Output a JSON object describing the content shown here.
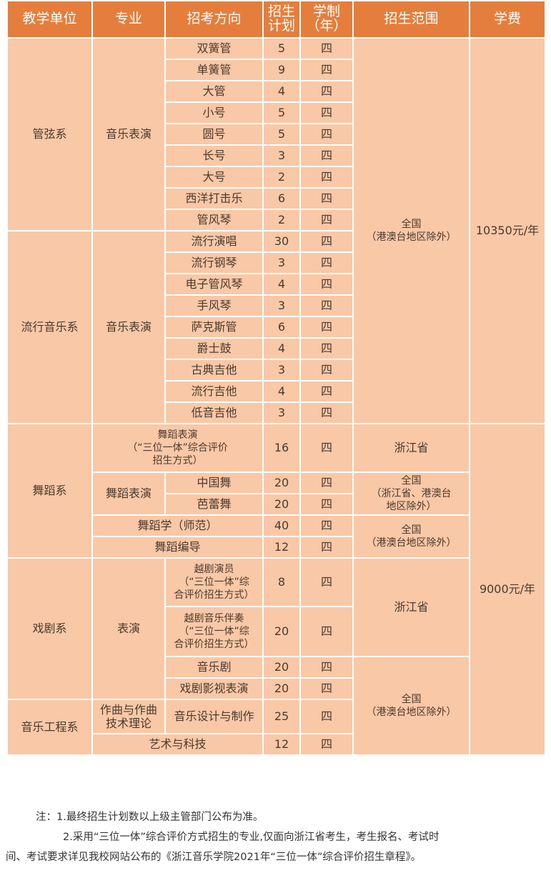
{
  "header": [
    "教学单位",
    "专业",
    "招考方向",
    "招生\n计划",
    "学制\n（年）",
    "招生范围",
    "学费"
  ],
  "units": [
    "管弦系",
    "流行音乐系",
    "舞蹈系",
    "戏剧系",
    "音乐工程系"
  ],
  "majors": [
    "音乐表演",
    "音乐表演",
    "舞蹈表演",
    "表演",
    "作曲与作曲\n技术理论"
  ],
  "rows": [
    {
      "dir": "双簧管",
      "plan": "5",
      "years": "四"
    },
    {
      "dir": "单簧管",
      "plan": "9",
      "years": "四"
    },
    {
      "dir": "大管",
      "plan": "4",
      "years": "四"
    },
    {
      "dir": "小号",
      "plan": "5",
      "years": "四"
    },
    {
      "dir": "圆号",
      "plan": "5",
      "years": "四"
    },
    {
      "dir": "长号",
      "plan": "3",
      "years": "四"
    },
    {
      "dir": "大号",
      "plan": "2",
      "years": "四"
    },
    {
      "dir": "西洋打击乐",
      "plan": "6",
      "years": "四"
    },
    {
      "dir": "管风琴",
      "plan": "2",
      "years": "四"
    },
    {
      "dir": "流行演唱",
      "plan": "30",
      "years": "四"
    },
    {
      "dir": "流行钢琴",
      "plan": "3",
      "years": "四"
    },
    {
      "dir": "电子管风琴",
      "plan": "4",
      "years": "四"
    },
    {
      "dir": "手风琴",
      "plan": "3",
      "years": "四"
    },
    {
      "dir": "萨克斯管",
      "plan": "6",
      "years": "四"
    },
    {
      "dir": "爵士鼓",
      "plan": "4",
      "years": "四"
    },
    {
      "dir": "古典吉他",
      "plan": "3",
      "years": "四"
    },
    {
      "dir": "流行吉他",
      "plan": "4",
      "years": "四"
    },
    {
      "dir": "低音吉他",
      "plan": "3",
      "years": "四"
    },
    {
      "dir": "舞蹈表演\n（“三位一体”综合评价\n招生方式）",
      "plan": "16",
      "years": "四"
    },
    {
      "dir": "中国舞",
      "plan": "20",
      "years": "四"
    },
    {
      "dir": "芭蕾舞",
      "plan": "20",
      "years": "四"
    },
    {
      "dir": "舞蹈学（师范）",
      "plan": "40",
      "years": "四"
    },
    {
      "dir": "舞蹈编导",
      "plan": "12",
      "years": "四"
    },
    {
      "dir": "越剧演员\n（“三位一体”综\n合评价招生方式）",
      "plan": "8",
      "years": "四"
    },
    {
      "dir": "越剧音乐伴奏\n（“三位一体”综\n合评价招生方式）",
      "plan": "20",
      "years": "四"
    },
    {
      "dir": "音乐剧",
      "plan": "20",
      "years": "四"
    },
    {
      "dir": "戏剧影视表演",
      "plan": "20",
      "years": "四"
    },
    {
      "dir": "音乐设计与制作",
      "plan": "25",
      "years": "四"
    },
    {
      "dir": "艺术与科技",
      "plan": "12",
      "years": "四"
    }
  ],
  "scopes": [
    "全国\n（港澳台地区除外）",
    "浙江省",
    "全国\n（浙江省、港澳台\n地区除外）",
    "全国\n（港澳台地区除外）",
    "浙江省",
    "全国\n（港澳台地区除外）"
  ],
  "fees": [
    "10350元/年",
    "9000元/年"
  ],
  "notes": [
    "注：1.最终招生计划数以上级主管部门公布为准。",
    "2.采用“三位一体”综合评价方式招生的专业,仅面向浙江省考生，考生报名、考试时",
    "间、考试要求详见我校网站公布的《浙江音乐学院2021年“三位一体”综合评价招生章程》。"
  ],
  "colors": {
    "header": "#e57d3c",
    "cell": "#f9c8a6",
    "border": "#ffffff"
  }
}
